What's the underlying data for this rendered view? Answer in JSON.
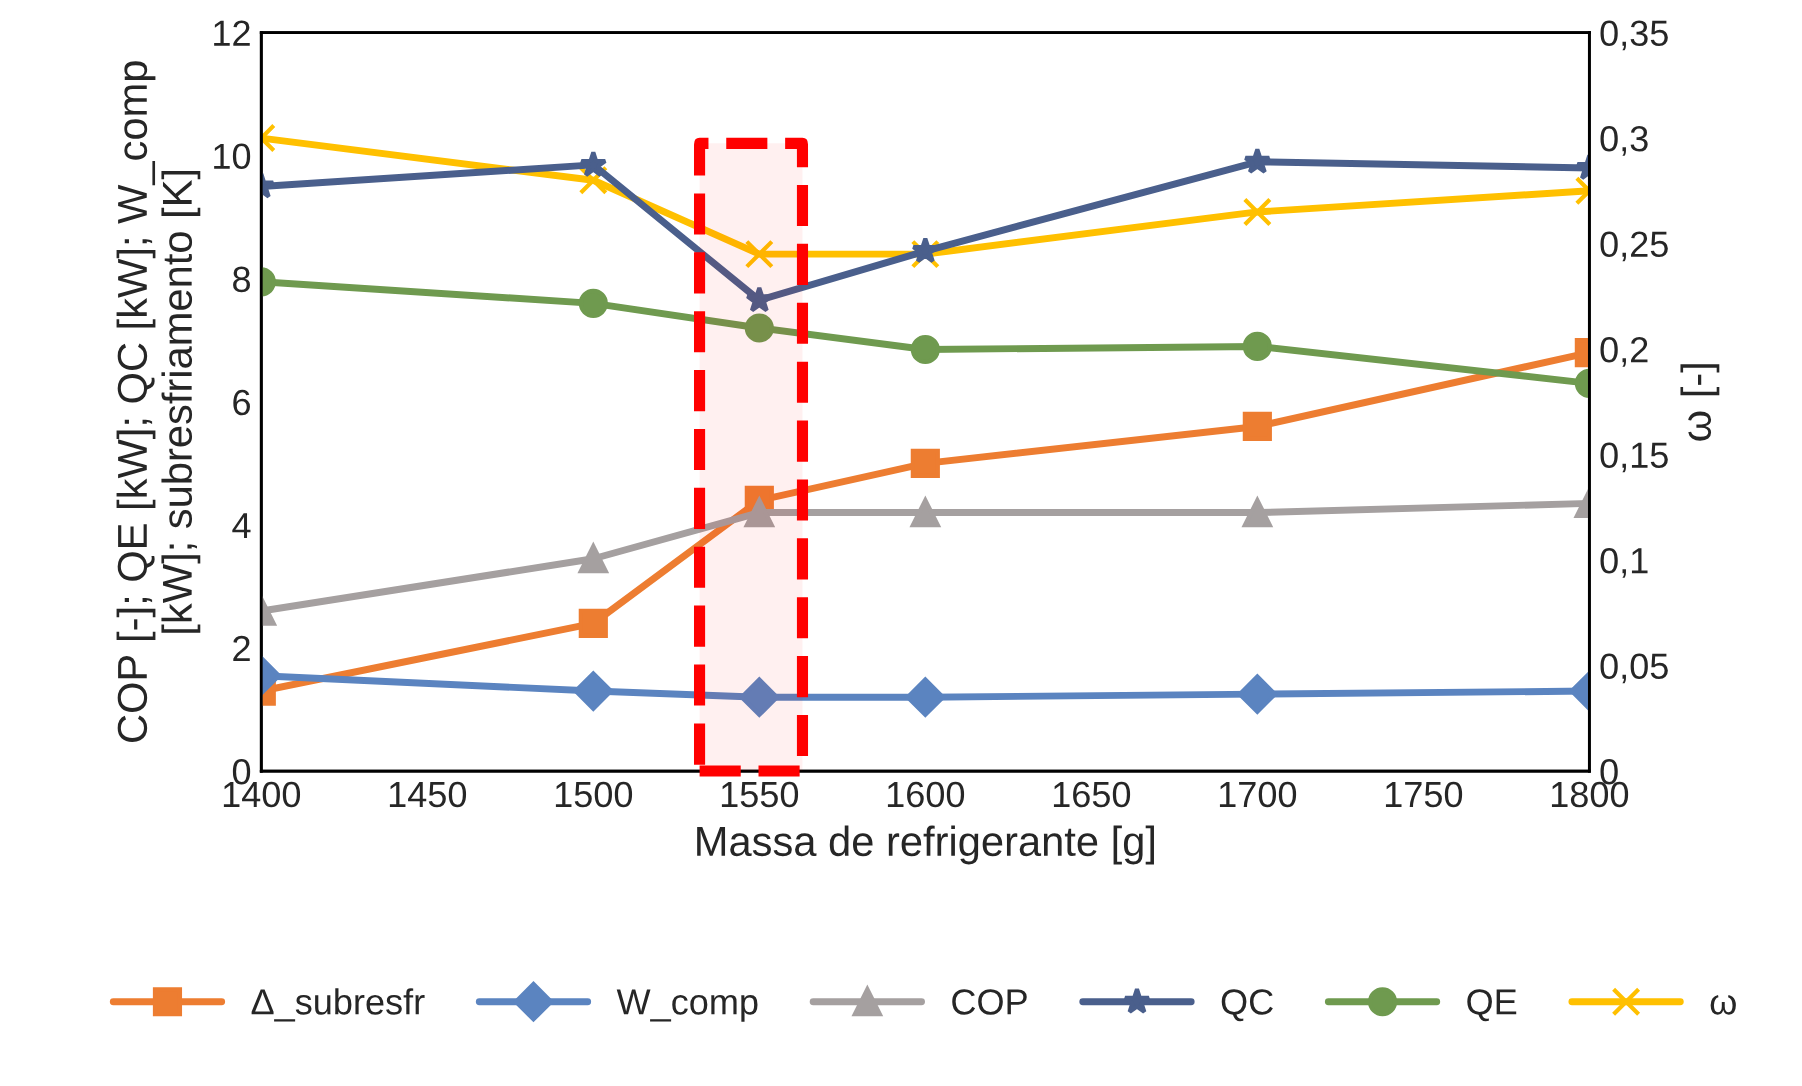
{
  "chart_data": {
    "type": "line",
    "xlabel": "Massa de refrigerante [g]",
    "ylabel": "COP [-]; QE [kW]; QC [kW]; W_comp\n[kW]; subresfriamento [K]",
    "y2label": "ω [-]",
    "x": [
      1400,
      1500,
      1550,
      1600,
      1700,
      1800
    ],
    "xlim": [
      1400,
      1800
    ],
    "xticks": [
      1400,
      1450,
      1500,
      1550,
      1600,
      1650,
      1700,
      1750,
      1800
    ],
    "ylim": [
      0,
      12
    ],
    "yticks": [
      0,
      2,
      4,
      6,
      8,
      10,
      12
    ],
    "y2lim": [
      0,
      0.35
    ],
    "y2ticks": [
      {
        "value": 0,
        "label": "0"
      },
      {
        "value": 0.05,
        "label": "0,05"
      },
      {
        "value": 0.1,
        "label": "0,1"
      },
      {
        "value": 0.15,
        "label": "0,15"
      },
      {
        "value": 0.2,
        "label": "0,2"
      },
      {
        "value": 0.25,
        "label": "0,25"
      },
      {
        "value": 0.3,
        "label": "0,3"
      },
      {
        "value": 0.35,
        "label": "0,35"
      }
    ],
    "grid": false,
    "legend": "bottom",
    "bands": [
      {
        "axis": "x",
        "from": 1532,
        "to": 1563,
        "color": "#ff0000"
      }
    ],
    "series": [
      {
        "name": "Δ_subresfr",
        "color": "#ed7d31",
        "marker": "square",
        "values": [
          1.3,
          2.4,
          4.4,
          5.0,
          5.6,
          6.8
        ]
      },
      {
        "name": "W_comp",
        "color": "#5b84c0",
        "marker": "diamond",
        "values": [
          1.55,
          1.3,
          1.2,
          1.2,
          1.25,
          1.3
        ]
      },
      {
        "name": "COP",
        "color": "#a5a0a0",
        "marker": "triangle",
        "values": [
          2.6,
          3.45,
          4.2,
          4.2,
          4.2,
          4.35
        ]
      },
      {
        "name": "QC",
        "color": "#4a5f8c",
        "marker": "star",
        "values": [
          9.5,
          9.85,
          7.65,
          8.45,
          9.9,
          9.8
        ]
      },
      {
        "name": "QE",
        "color": "#6f9a4f",
        "marker": "circle",
        "values": [
          7.95,
          7.6,
          7.2,
          6.85,
          6.9,
          6.3
        ]
      },
      {
        "name": "ω",
        "color": "#ffc000",
        "marker": "cross",
        "axis": "y2",
        "values": [
          0.3,
          0.28,
          0.245,
          0.245,
          0.265,
          0.275
        ]
      }
    ]
  }
}
